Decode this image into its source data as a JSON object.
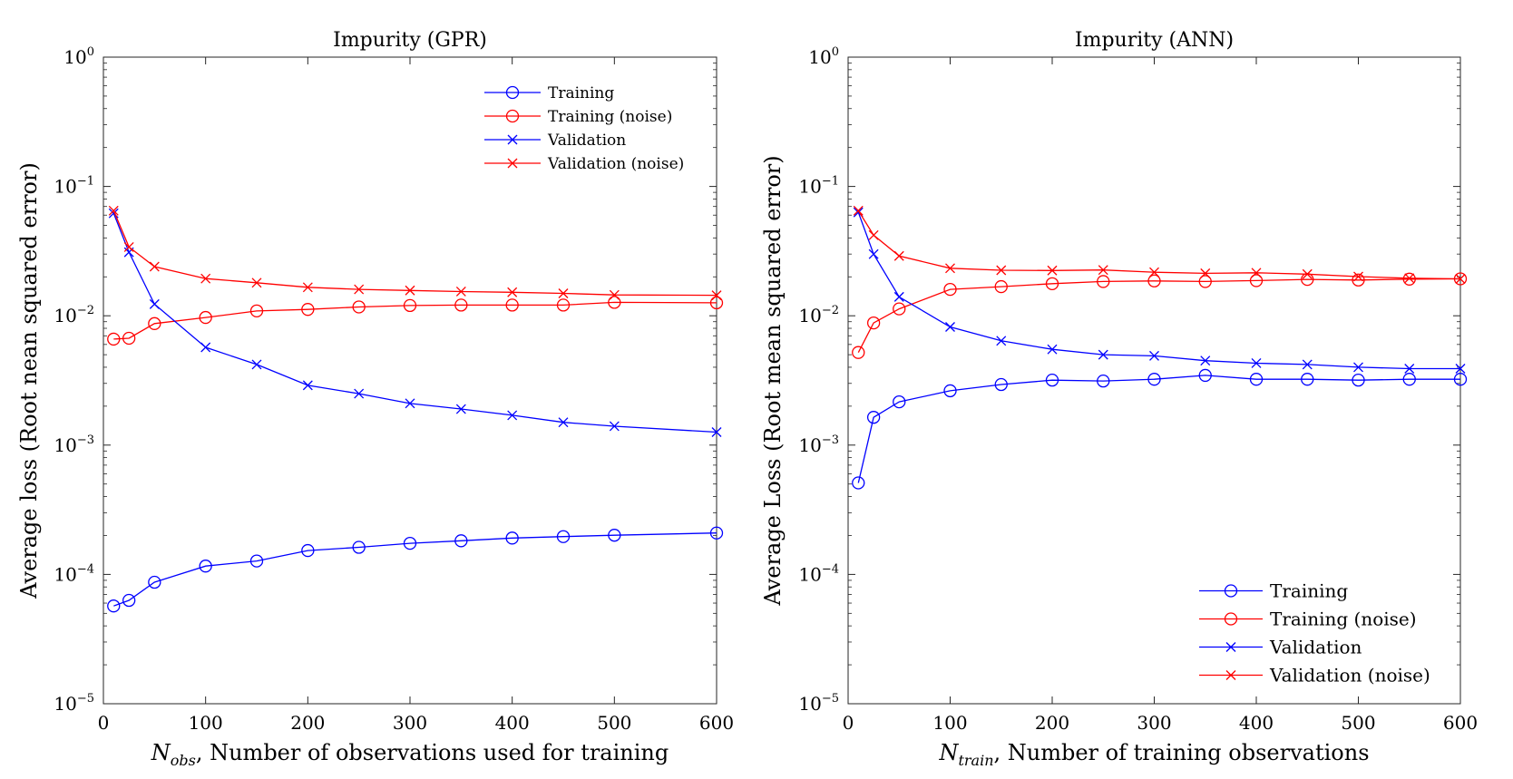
{
  "chart_data": [
    {
      "type": "line",
      "title": "Impurity (GPR)",
      "xlabel_var": "N",
      "xlabel_sub": "obs",
      "xlabel_rest": ", Number of observations used for training",
      "ylabel": "Average loss (Root nean squared error)",
      "xlim": [
        0,
        600
      ],
      "ylim": [
        1e-05,
        1
      ],
      "yscale": "log",
      "x_ticks": [
        "0",
        "100",
        "200",
        "300",
        "400",
        "500",
        "600"
      ],
      "y_ticks": [
        {
          "base": "10",
          "exp": "0"
        },
        {
          "base": "10",
          "exp": "−1"
        },
        {
          "base": "10",
          "exp": "−2"
        },
        {
          "base": "10",
          "exp": "−3"
        },
        {
          "base": "10",
          "exp": "−4"
        },
        {
          "base": "10",
          "exp": "−5"
        }
      ],
      "legend_position": "top-right",
      "x": [
        10,
        25,
        50,
        100,
        150,
        200,
        250,
        300,
        350,
        400,
        450,
        500,
        600
      ],
      "series": [
        {
          "name": "Training",
          "color": "#0000ff",
          "marker": "circle",
          "values": [
            5.7e-05,
            6.3e-05,
            8.7e-05,
            0.000116,
            0.000127,
            0.000153,
            0.000162,
            0.000174,
            0.000182,
            0.000191,
            0.000196,
            0.000201,
            0.000209
          ]
        },
        {
          "name": "Training (noise)",
          "color": "#ff0000",
          "marker": "circle",
          "values": [
            0.0066,
            0.0067,
            0.0087,
            0.0097,
            0.0109,
            0.0112,
            0.0117,
            0.012,
            0.0121,
            0.0121,
            0.0121,
            0.0127,
            0.0126
          ]
        },
        {
          "name": "Validation",
          "color": "#0000ff",
          "marker": "x",
          "values": [
            0.062,
            0.031,
            0.0123,
            0.0057,
            0.0042,
            0.0029,
            0.0025,
            0.0021,
            0.0019,
            0.0017,
            0.0015,
            0.0014,
            0.00126
          ]
        },
        {
          "name": "Validation (noise)",
          "color": "#ff0000",
          "marker": "x",
          "values": [
            0.065,
            0.034,
            0.024,
            0.0194,
            0.018,
            0.0166,
            0.016,
            0.0157,
            0.0154,
            0.0152,
            0.0149,
            0.0145,
            0.0144
          ]
        }
      ]
    },
    {
      "type": "line",
      "title": "Impurity (ANN)",
      "xlabel_var": "N",
      "xlabel_sub": "train",
      "xlabel_rest": ", Number of training observations",
      "ylabel": "Average Loss (Root mean squared error)",
      "xlim": [
        0,
        600
      ],
      "ylim": [
        1e-05,
        1
      ],
      "yscale": "log",
      "x_ticks": [
        "0",
        "100",
        "200",
        "300",
        "400",
        "500",
        "600"
      ],
      "y_ticks": [
        {
          "base": "10",
          "exp": "0"
        },
        {
          "base": "10",
          "exp": "−1"
        },
        {
          "base": "10",
          "exp": "−2"
        },
        {
          "base": "10",
          "exp": "−3"
        },
        {
          "base": "10",
          "exp": "−4"
        },
        {
          "base": "10",
          "exp": "−5"
        }
      ],
      "legend_position": "bottom-right",
      "x": [
        10,
        25,
        50,
        100,
        150,
        200,
        250,
        300,
        350,
        400,
        450,
        500,
        550,
        600
      ],
      "series": [
        {
          "name": "Training",
          "color": "#0000ff",
          "marker": "circle",
          "values": [
            0.00051,
            0.00164,
            0.00216,
            0.00263,
            0.00294,
            0.00318,
            0.00313,
            0.00323,
            0.00346,
            0.00323,
            0.00323,
            0.00318,
            0.00323,
            0.00323
          ]
        },
        {
          "name": "Training (noise)",
          "color": "#ff0000",
          "marker": "circle",
          "values": [
            0.0052,
            0.0088,
            0.0113,
            0.016,
            0.0168,
            0.0177,
            0.0184,
            0.0186,
            0.0184,
            0.0187,
            0.0191,
            0.0189,
            0.0192,
            0.0193
          ]
        },
        {
          "name": "Validation",
          "color": "#0000ff",
          "marker": "x",
          "values": [
            0.063,
            0.03,
            0.014,
            0.0082,
            0.0064,
            0.0055,
            0.005,
            0.0049,
            0.0045,
            0.0043,
            0.0042,
            0.004,
            0.0039,
            0.0039
          ]
        },
        {
          "name": "Validation (noise)",
          "color": "#ff0000",
          "marker": "x",
          "values": [
            0.065,
            0.042,
            0.029,
            0.0233,
            0.0225,
            0.0224,
            0.0226,
            0.0217,
            0.0213,
            0.0215,
            0.021,
            0.0201,
            0.0195,
            0.0193
          ]
        }
      ]
    }
  ]
}
